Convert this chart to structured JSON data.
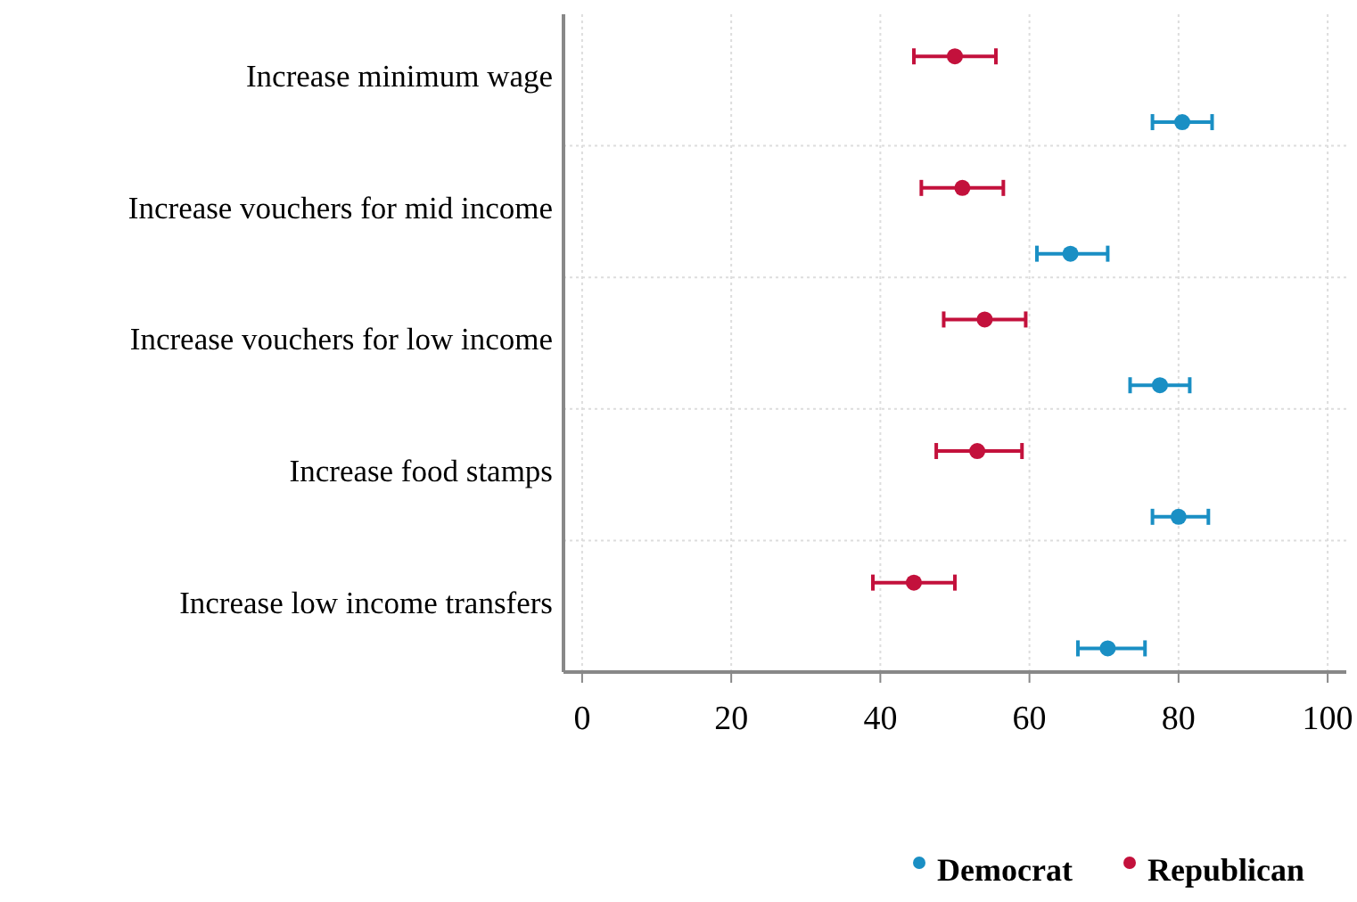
{
  "chart_data": {
    "type": "scatter",
    "orientation": "horizontal",
    "categories": [
      "Increase minimum wage",
      "Increase vouchers for mid income",
      "Increase vouchers for low income",
      "Increase food stamps",
      "Increase low income transfers"
    ],
    "series": [
      {
        "name": "Democrat",
        "color": "#1a8fc4",
        "values": [
          80.5,
          65.5,
          77.5,
          80,
          70.5
        ],
        "errors": [
          [
            76.5,
            84.5
          ],
          [
            61,
            70.5
          ],
          [
            73.5,
            81.5
          ],
          [
            76.5,
            84
          ],
          [
            66.5,
            75.5
          ]
        ]
      },
      {
        "name": "Republican",
        "color": "#c3113c",
        "values": [
          50,
          51,
          54,
          53,
          44.5
        ],
        "errors": [
          [
            44.5,
            55.5
          ],
          [
            45.5,
            56.5
          ],
          [
            48.5,
            59.5
          ],
          [
            47.5,
            59
          ],
          [
            39,
            50
          ]
        ]
      }
    ],
    "xlim": [
      -2.5,
      102.5
    ],
    "xticks": [
      0,
      20,
      40,
      60,
      80,
      100
    ],
    "grid": true,
    "legend": "bottom",
    "marker": "circle"
  }
}
